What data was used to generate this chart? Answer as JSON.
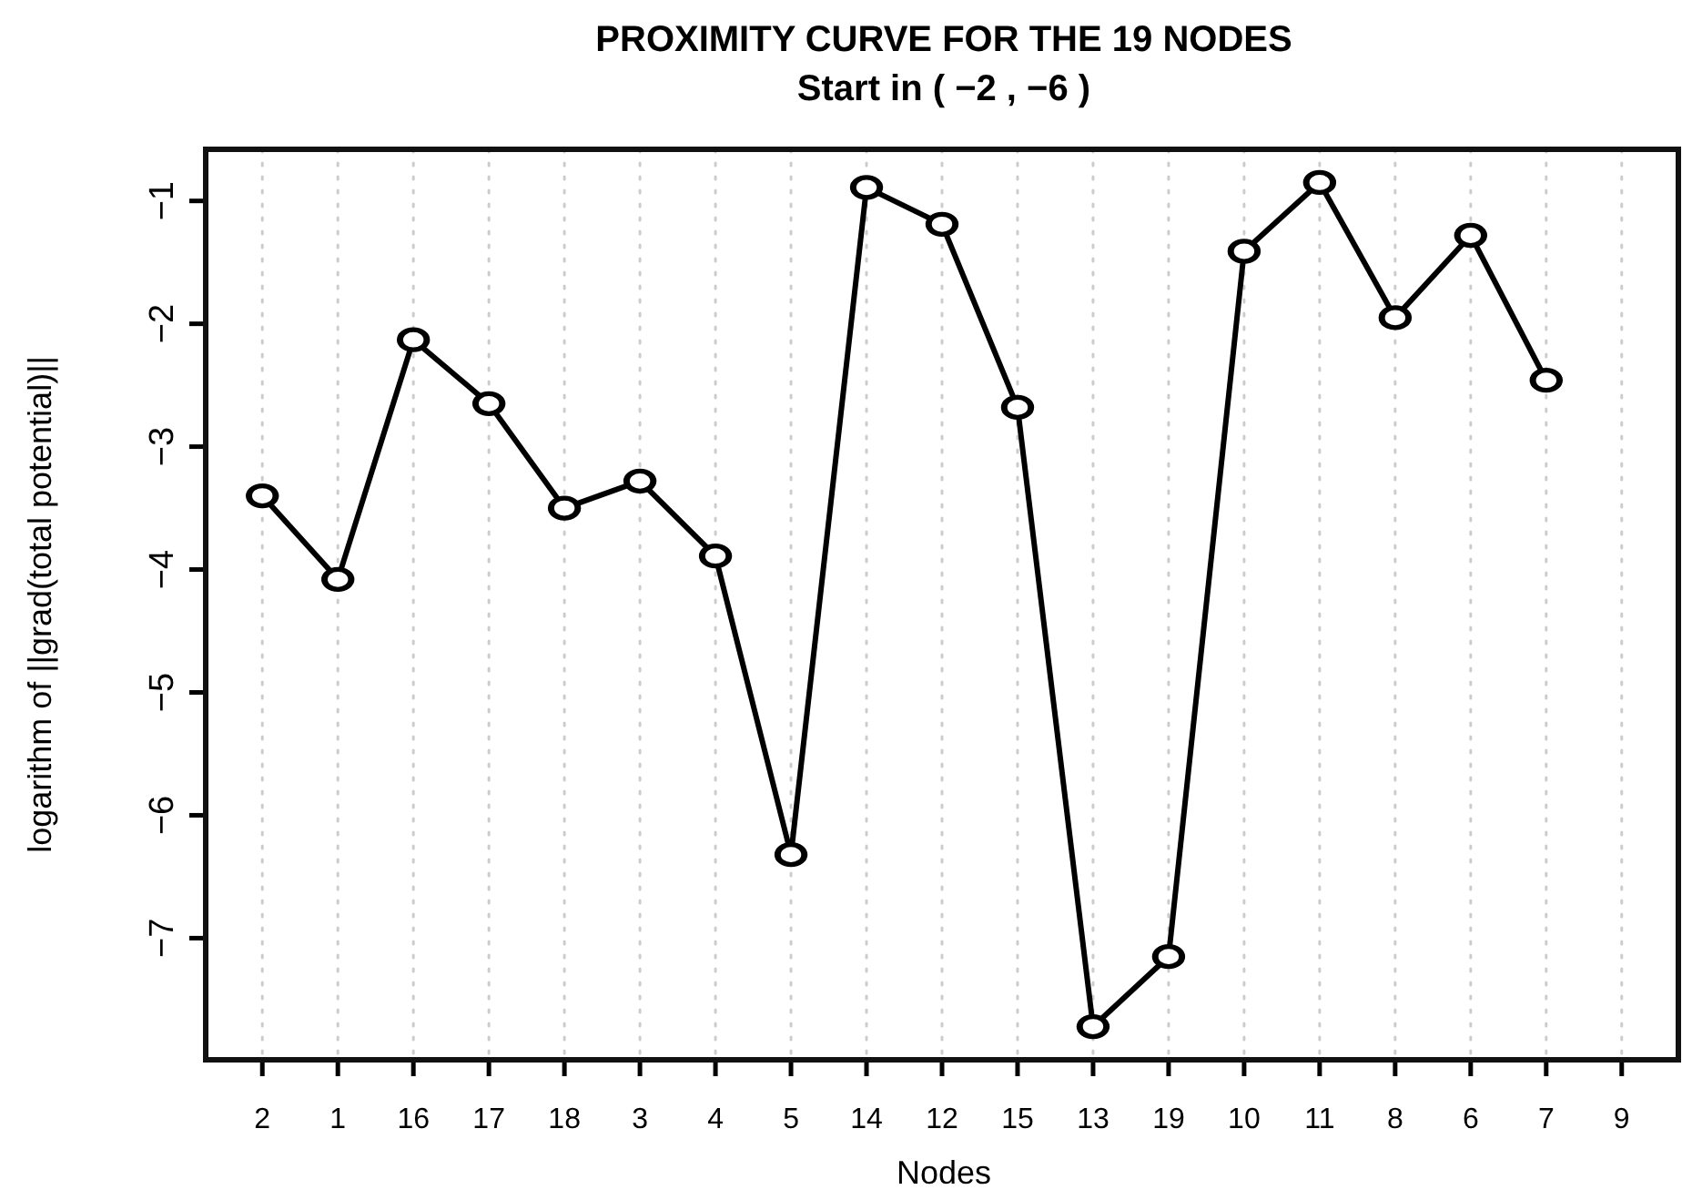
{
  "chart_data": {
    "type": "line",
    "title": "PROXIMITY CURVE FOR THE 19 NODES",
    "subtitle": "Start in ( −2 , −6 )",
    "xlabel": "Nodes",
    "ylabel": "logarithm of ||grad(total potential)||",
    "categories": [
      "2",
      "1",
      "16",
      "17",
      "18",
      "3",
      "4",
      "5",
      "14",
      "12",
      "15",
      "13",
      "19",
      "10",
      "11",
      "8",
      "6",
      "7",
      "9"
    ],
    "series": [
      {
        "color": "#000000",
        "values": [
          -3.4,
          -4.08,
          -2.13,
          -2.65,
          -3.5,
          -3.28,
          -3.89,
          -6.32,
          -0.89,
          -1.19,
          -2.68,
          -7.72,
          -7.15,
          -1.41,
          -0.85,
          -1.95,
          -1.28,
          -2.46,
          null
        ]
      }
    ],
    "ylim": [
      -7.99,
      -0.58
    ],
    "yticks": [
      -7,
      -6,
      -5,
      -4,
      -3,
      -2,
      -1
    ],
    "grid": "x",
    "marker": "circle",
    "line_style": "solid"
  }
}
